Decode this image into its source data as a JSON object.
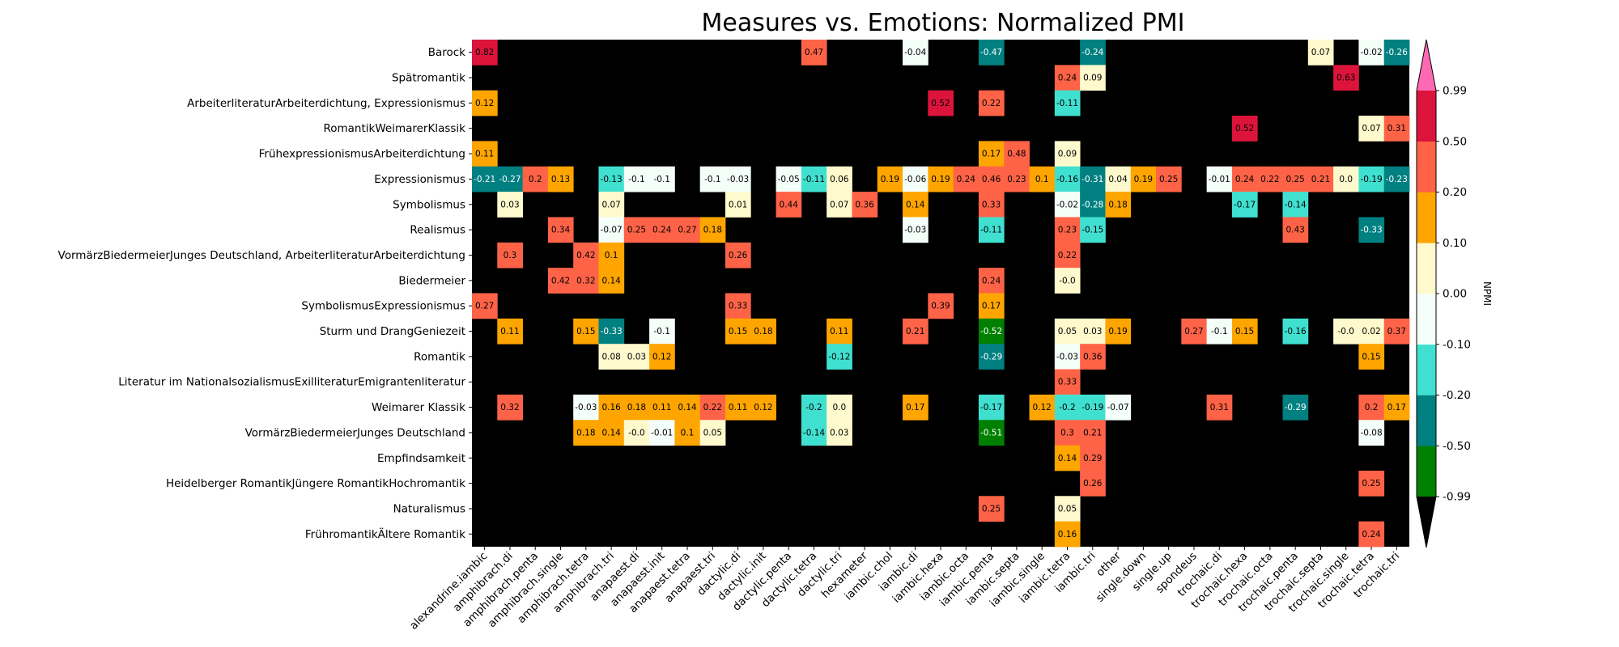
{
  "chart_data": {
    "type": "heatmap",
    "title": "Measures vs. Emotions: Normalized PMI",
    "xlabel": "",
    "ylabel": "",
    "x_categories": [
      "alexandrine.iambic",
      "amphibrach.di",
      "amphibrach.penta",
      "amphibrach.single",
      "amphibrach.tetra",
      "amphibrach.tri",
      "anapaest.di",
      "anapaest.init",
      "anapaest.tetra",
      "anapaest.tri",
      "dactylic.di",
      "dactylic.init",
      "dactylic.penta",
      "dactylic.tetra",
      "dactylic.tri",
      "hexameter",
      "iambic.chol",
      "iambic.di",
      "iambic.hexa",
      "iambic.octa",
      "iambic.penta",
      "iambic.septa",
      "iambic.single",
      "iambic.tetra",
      "iambic.tri",
      "other",
      "single.down",
      "single.up",
      "spondeus",
      "trochaic.di",
      "trochaic.hexa",
      "trochaic.octa",
      "trochaic.penta",
      "trochaic.septa",
      "trochaic.single",
      "trochaic.tetra",
      "trochaic.tri"
    ],
    "y_categories": [
      "Barock",
      "Spätromantik",
      "ArbeiterliteraturArbeiterdichtung, Expressionismus",
      "RomantikWeimarerKlassik",
      "FrühexpressionismusArbeiterdichtung",
      "Expressionismus",
      "Symbolismus",
      "Realismus",
      "VormärzBiedermeierJunges Deutschland, ArbeiterliteraturArbeiterdichtung",
      "Biedermeier",
      "SymbolismusExpressionismus",
      "Sturm und DrangGeniezeit",
      "Romantik",
      "Literatur im NationalsozialismusExilliteraturEmigrantenliteratur",
      "Weimarer Klassik",
      "VormärzBiedermeierJunges Deutschland",
      "Empfindsamkeit",
      "Heidelberger RomantikJüngere RomantikHochromantik",
      "Naturalismus",
      "FrühromantikÄltere Romantik"
    ],
    "cells": [
      [
        0,
        0,
        "0.82"
      ],
      [
        0,
        13,
        "0.47"
      ],
      [
        0,
        17,
        "-0.04"
      ],
      [
        0,
        20,
        "-0.47"
      ],
      [
        0,
        24,
        "-0.24"
      ],
      [
        0,
        33,
        "0.07"
      ],
      [
        0,
        35,
        "-0.02"
      ],
      [
        0,
        36,
        "-0.26"
      ],
      [
        1,
        23,
        "0.24"
      ],
      [
        1,
        24,
        "0.09"
      ],
      [
        1,
        34,
        "0.63"
      ],
      [
        2,
        0,
        "0.12"
      ],
      [
        2,
        18,
        "0.52"
      ],
      [
        2,
        20,
        "0.22"
      ],
      [
        2,
        23,
        "-0.11"
      ],
      [
        3,
        30,
        "0.52"
      ],
      [
        3,
        35,
        "0.07"
      ],
      [
        3,
        36,
        "0.31"
      ],
      [
        4,
        0,
        "0.11"
      ],
      [
        4,
        20,
        "0.17"
      ],
      [
        4,
        21,
        "0.48"
      ],
      [
        4,
        23,
        "0.09"
      ],
      [
        5,
        0,
        "-0.21"
      ],
      [
        5,
        1,
        "-0.27"
      ],
      [
        5,
        2,
        "0.2"
      ],
      [
        5,
        3,
        "0.13"
      ],
      [
        5,
        5,
        "-0.13"
      ],
      [
        5,
        6,
        "-0.1"
      ],
      [
        5,
        7,
        "-0.1"
      ],
      [
        5,
        9,
        "-0.1"
      ],
      [
        5,
        10,
        "-0.03"
      ],
      [
        5,
        12,
        "-0.05"
      ],
      [
        5,
        13,
        "-0.11"
      ],
      [
        5,
        14,
        "0.06"
      ],
      [
        5,
        16,
        "0.19"
      ],
      [
        5,
        17,
        "-0.06"
      ],
      [
        5,
        18,
        "0.19"
      ],
      [
        5,
        19,
        "0.24"
      ],
      [
        5,
        20,
        "0.46"
      ],
      [
        5,
        21,
        "0.23"
      ],
      [
        5,
        22,
        "0.1"
      ],
      [
        5,
        23,
        "-0.16"
      ],
      [
        5,
        24,
        "-0.31"
      ],
      [
        5,
        25,
        "0.04"
      ],
      [
        5,
        26,
        "0.19"
      ],
      [
        5,
        27,
        "0.25"
      ],
      [
        5,
        29,
        "-0.01"
      ],
      [
        5,
        30,
        "0.24"
      ],
      [
        5,
        31,
        "0.22"
      ],
      [
        5,
        32,
        "0.25"
      ],
      [
        5,
        33,
        "0.21"
      ],
      [
        5,
        34,
        "0.0"
      ],
      [
        5,
        35,
        "-0.19"
      ],
      [
        5,
        36,
        "-0.23"
      ],
      [
        6,
        1,
        "0.03"
      ],
      [
        6,
        5,
        "0.07"
      ],
      [
        6,
        10,
        "0.01"
      ],
      [
        6,
        12,
        "0.44"
      ],
      [
        6,
        14,
        "0.07"
      ],
      [
        6,
        15,
        "0.36"
      ],
      [
        6,
        17,
        "0.14"
      ],
      [
        6,
        20,
        "0.33"
      ],
      [
        6,
        23,
        "-0.02"
      ],
      [
        6,
        24,
        "-0.28"
      ],
      [
        6,
        25,
        "0.18"
      ],
      [
        6,
        30,
        "-0.17"
      ],
      [
        6,
        32,
        "-0.14"
      ],
      [
        7,
        3,
        "0.34"
      ],
      [
        7,
        5,
        "-0.07"
      ],
      [
        7,
        6,
        "0.25"
      ],
      [
        7,
        7,
        "0.24"
      ],
      [
        7,
        8,
        "0.27"
      ],
      [
        7,
        9,
        "0.18"
      ],
      [
        7,
        17,
        "-0.03"
      ],
      [
        7,
        20,
        "-0.11"
      ],
      [
        7,
        23,
        "0.23"
      ],
      [
        7,
        24,
        "-0.15"
      ],
      [
        7,
        32,
        "0.43"
      ],
      [
        7,
        35,
        "-0.33"
      ],
      [
        8,
        1,
        "0.3"
      ],
      [
        8,
        4,
        "0.42"
      ],
      [
        8,
        5,
        "0.1"
      ],
      [
        8,
        10,
        "0.26"
      ],
      [
        8,
        23,
        "0.22"
      ],
      [
        9,
        3,
        "0.42"
      ],
      [
        9,
        4,
        "0.32"
      ],
      [
        9,
        5,
        "0.14"
      ],
      [
        9,
        20,
        "0.24"
      ],
      [
        9,
        23,
        "-0.0"
      ],
      [
        10,
        0,
        "0.27"
      ],
      [
        10,
        10,
        "0.33"
      ],
      [
        10,
        18,
        "0.39"
      ],
      [
        10,
        20,
        "0.17"
      ],
      [
        11,
        1,
        "0.11"
      ],
      [
        11,
        4,
        "0.15"
      ],
      [
        11,
        5,
        "-0.33"
      ],
      [
        11,
        7,
        "-0.1"
      ],
      [
        11,
        10,
        "0.15"
      ],
      [
        11,
        11,
        "0.18"
      ],
      [
        11,
        14,
        "0.11"
      ],
      [
        11,
        17,
        "0.21"
      ],
      [
        11,
        20,
        "-0.52"
      ],
      [
        11,
        23,
        "0.05"
      ],
      [
        11,
        24,
        "0.03"
      ],
      [
        11,
        25,
        "0.19"
      ],
      [
        11,
        28,
        "0.27"
      ],
      [
        11,
        29,
        "-0.1"
      ],
      [
        11,
        30,
        "0.15"
      ],
      [
        11,
        32,
        "-0.16"
      ],
      [
        11,
        34,
        "-0.0"
      ],
      [
        11,
        35,
        "0.02"
      ],
      [
        11,
        36,
        "0.37"
      ],
      [
        12,
        5,
        "0.08"
      ],
      [
        12,
        6,
        "0.03"
      ],
      [
        12,
        7,
        "0.12"
      ],
      [
        12,
        14,
        "-0.12"
      ],
      [
        12,
        20,
        "-0.29"
      ],
      [
        12,
        23,
        "-0.03"
      ],
      [
        12,
        24,
        "0.36"
      ],
      [
        12,
        35,
        "0.15"
      ],
      [
        13,
        23,
        "0.33"
      ],
      [
        14,
        1,
        "0.32"
      ],
      [
        14,
        4,
        "-0.03"
      ],
      [
        14,
        5,
        "0.16"
      ],
      [
        14,
        6,
        "0.18"
      ],
      [
        14,
        7,
        "0.11"
      ],
      [
        14,
        8,
        "0.14"
      ],
      [
        14,
        9,
        "0.22"
      ],
      [
        14,
        10,
        "0.11"
      ],
      [
        14,
        11,
        "0.12"
      ],
      [
        14,
        13,
        "-0.2"
      ],
      [
        14,
        14,
        "0.0"
      ],
      [
        14,
        17,
        "0.17"
      ],
      [
        14,
        20,
        "-0.17"
      ],
      [
        14,
        22,
        "0.12"
      ],
      [
        14,
        23,
        "-0.2"
      ],
      [
        14,
        24,
        "-0.19"
      ],
      [
        14,
        25,
        "-0.07"
      ],
      [
        14,
        29,
        "0.31"
      ],
      [
        14,
        32,
        "-0.29"
      ],
      [
        14,
        35,
        "0.2"
      ],
      [
        14,
        36,
        "0.17"
      ],
      [
        15,
        4,
        "0.18"
      ],
      [
        15,
        5,
        "0.14"
      ],
      [
        15,
        6,
        "-0.0"
      ],
      [
        15,
        7,
        "-0.01"
      ],
      [
        15,
        8,
        "0.1"
      ],
      [
        15,
        9,
        "0.05"
      ],
      [
        15,
        13,
        "-0.14"
      ],
      [
        15,
        14,
        "0.03"
      ],
      [
        15,
        20,
        "-0.51"
      ],
      [
        15,
        23,
        "0.3"
      ],
      [
        15,
        24,
        "0.21"
      ],
      [
        15,
        35,
        "-0.08"
      ],
      [
        16,
        23,
        "0.14"
      ],
      [
        16,
        24,
        "0.29"
      ],
      [
        17,
        24,
        "0.26"
      ],
      [
        17,
        35,
        "0.25"
      ],
      [
        18,
        20,
        "0.25"
      ],
      [
        18,
        23,
        "0.05"
      ],
      [
        19,
        23,
        "0.16"
      ],
      [
        19,
        35,
        "0.24"
      ]
    ],
    "colorbar": {
      "label": "NPMI",
      "ticks": [
        "0.99",
        "0.50",
        "0.20",
        "0.10",
        "0.00",
        "-0.10",
        "-0.20",
        "-0.50",
        "-0.99"
      ],
      "boundaries": [
        -0.99,
        -0.5,
        -0.2,
        -0.1,
        0.0,
        0.1,
        0.2,
        0.5,
        0.99
      ],
      "colors": [
        "#008000",
        "#008080",
        "#40e0d0",
        "#f5fffa",
        "#fffacd",
        "#ffa500",
        "#ff6347",
        "#dc143c"
      ],
      "under_color": "#000000",
      "over_color": "#ff69b4"
    },
    "background_color": "#000000",
    "grid": false
  }
}
